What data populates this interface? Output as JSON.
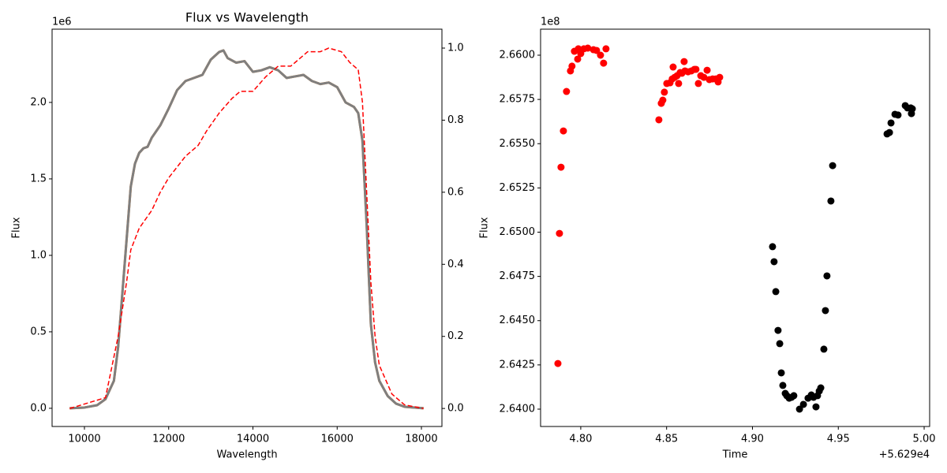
{
  "chart_data": [
    {
      "type": "line",
      "title": "Flux vs Wavelength",
      "x_label": "Wavelength",
      "y_label": "Flux",
      "y_offset_label": "1e6",
      "x": [
        9650,
        10000,
        10300,
        10500,
        10700,
        10800,
        10900,
        11000,
        11100,
        11200,
        11300,
        11400,
        11500,
        11600,
        11800,
        12000,
        12200,
        12400,
        12600,
        12800,
        13000,
        13200,
        13300,
        13400,
        13600,
        13800,
        14000,
        14200,
        14400,
        14600,
        14800,
        15000,
        15200,
        15400,
        15600,
        15800,
        16000,
        16200,
        16400,
        16500,
        16600,
        16700,
        16800,
        16900,
        17000,
        17200,
        17400,
        17600,
        18050
      ],
      "series": [
        {
          "color": "#ff7f0e",
          "values": [
            0,
            0.005,
            0.02,
            0.06,
            0.18,
            0.4,
            0.75,
            1.1,
            1.45,
            1.6,
            1.67,
            1.7,
            1.71,
            1.77,
            1.85,
            1.96,
            2.08,
            2.14,
            2.16,
            2.18,
            2.28,
            2.33,
            2.34,
            2.29,
            2.26,
            2.27,
            2.2,
            2.21,
            2.23,
            2.21,
            2.16,
            2.17,
            2.18,
            2.14,
            2.12,
            2.13,
            2.1,
            2,
            1.97,
            1.93,
            1.75,
            1.2,
            0.55,
            0.3,
            0.18,
            0.08,
            0.03,
            0.01,
            0
          ]
        },
        {
          "color": "#7f7f7f",
          "values": [
            0,
            0.005,
            0.02,
            0.06,
            0.18,
            0.4,
            0.75,
            1.1,
            1.45,
            1.6,
            1.67,
            1.7,
            1.71,
            1.77,
            1.85,
            1.96,
            2.08,
            2.14,
            2.16,
            2.18,
            2.28,
            2.33,
            2.34,
            2.29,
            2.26,
            2.27,
            2.2,
            2.21,
            2.23,
            2.21,
            2.16,
            2.17,
            2.18,
            2.14,
            2.12,
            2.13,
            2.1,
            2,
            1.97,
            1.93,
            1.75,
            1.2,
            0.55,
            0.3,
            0.18,
            0.08,
            0.03,
            0.01,
            0
          ]
        },
        {
          "color": "#ff0000",
          "linestyle": "dashed",
          "axis": "y2",
          "x": [
            9650,
            10500,
            10800,
            11000,
            11100,
            11300,
            11600,
            11800,
            12000,
            12400,
            12700,
            12900,
            13200,
            13500,
            13700,
            14000,
            14300,
            14600,
            14900,
            15100,
            15300,
            15600,
            15800,
            16100,
            16300,
            16500,
            16600,
            16700,
            16800,
            16900,
            17000,
            17300,
            17600,
            18050
          ],
          "values": [
            0,
            0.03,
            0.2,
            0.35,
            0.44,
            0.5,
            0.55,
            0.6,
            0.64,
            0.7,
            0.73,
            0.77,
            0.82,
            0.86,
            0.88,
            0.88,
            0.92,
            0.95,
            0.95,
            0.97,
            0.99,
            0.99,
            1.0,
            0.99,
            0.96,
            0.94,
            0.85,
            0.6,
            0.35,
            0.2,
            0.12,
            0.04,
            0.01,
            0
          ]
        }
      ],
      "xlim": [
        9232,
        18487
      ],
      "xticks": [
        10000,
        12000,
        14000,
        16000,
        18000
      ],
      "ylim": [
        -0.119,
        2.479
      ],
      "yticks": [
        {
          "value": 0,
          "label": "0.0"
        },
        {
          "value": 0.5,
          "label": "0.5"
        },
        {
          "value": 1,
          "label": "1.0"
        },
        {
          "value": 1.5,
          "label": "1.5"
        },
        {
          "value": 2,
          "label": "2.0"
        }
      ],
      "y2lim": [
        -0.05,
        1.0525
      ],
      "y2ticks": [
        {
          "value": 0,
          "label": "0.0"
        },
        {
          "value": 0.2,
          "label": "0.2"
        },
        {
          "value": 0.4,
          "label": "0.4"
        },
        {
          "value": 0.6,
          "label": "0.6"
        },
        {
          "value": 0.8,
          "label": "0.8"
        },
        {
          "value": 1,
          "label": "1.0"
        }
      ]
    },
    {
      "type": "scatter",
      "x_label": "Time",
      "y_label": "Flux",
      "y_offset_label": "1e8",
      "x_offset_label": "+5.629e4",
      "series": [
        {
          "color": "#ff0000",
          "x": [
            4.7867,
            4.7876,
            4.7885,
            4.7899,
            4.7917,
            4.794,
            4.7949,
            4.7963,
            4.7982,
            4.7986,
            4.8,
            4.8018,
            4.8041,
            4.8074,
            4.8092,
            4.8115,
            4.8133,
            4.8147,
            4.8455,
            4.8469,
            4.8478,
            4.8487,
            4.8501,
            4.852,
            4.8533,
            4.8538,
            4.8547,
            4.8561,
            4.857,
            4.8579,
            4.8589,
            4.8602,
            4.8607,
            4.8625,
            4.8644,
            4.8662,
            4.8671,
            4.8685,
            4.8699,
            4.8717,
            4.8736,
            4.8749,
            4.8768,
            4.8786,
            4.88,
            4.8809
          ],
          "values": [
            2.64258,
            2.64993,
            2.65367,
            2.65572,
            2.65795,
            2.65911,
            2.65938,
            2.66022,
            2.65978,
            2.66036,
            2.66009,
            2.66036,
            2.6604,
            2.66031,
            2.66027,
            2.66,
            2.65955,
            2.66036,
            2.65635,
            2.65728,
            2.65746,
            2.65791,
            2.6584,
            2.65844,
            2.65866,
            2.65933,
            2.65875,
            2.65884,
            2.6584,
            2.65902,
            2.65898,
            2.65964,
            2.65911,
            2.65906,
            2.65911,
            2.6592,
            2.6592,
            2.6584,
            2.65884,
            2.65875,
            2.65915,
            2.65862,
            2.65866,
            2.65866,
            2.65849,
            2.65875
          ]
        },
        {
          "color": "#000000",
          "x": [
            4.9117,
            4.9126,
            4.9136,
            4.9149,
            4.9159,
            4.9168,
            4.9177,
            4.9191,
            4.92,
            4.9214,
            4.9228,
            4.9241,
            4.9274,
            4.9297,
            4.9324,
            4.9343,
            4.9356,
            4.937,
            4.9379,
            4.9389,
            4.9398,
            4.9416,
            4.9425,
            4.9434,
            4.9457,
            4.9467,
            4.9784,
            4.9798,
            4.9807,
            4.983,
            4.9848,
            4.989,
            4.9903,
            4.9922,
            4.9926,
            4.9931
          ],
          "values": [
            2.64918,
            2.64833,
            2.64664,
            2.64445,
            2.6437,
            2.64205,
            2.64134,
            2.64089,
            2.64076,
            2.64062,
            2.64067,
            2.64076,
            2.64,
            2.64027,
            2.64062,
            2.6408,
            2.64067,
            2.64013,
            2.64076,
            2.64102,
            2.6412,
            2.64339,
            2.64557,
            2.64753,
            2.65176,
            2.65376,
            2.65555,
            2.65563,
            2.65617,
            2.65666,
            2.65662,
            2.65715,
            2.65702,
            2.65702,
            2.6567,
            2.65697
          ]
        }
      ],
      "xlim": [
        4.7766,
        5.0032
      ],
      "xticks": [
        {
          "value": 4.8,
          "label": "4.80"
        },
        {
          "value": 4.85,
          "label": "4.85"
        },
        {
          "value": 4.9,
          "label": "4.90"
        },
        {
          "value": 4.95,
          "label": "4.95"
        },
        {
          "value": 5.0,
          "label": "5.00"
        }
      ],
      "ylim": [
        2.63902,
        2.66147
      ],
      "yticks": [
        {
          "value": 2.64,
          "label": "2.6400"
        },
        {
          "value": 2.6425,
          "label": "2.6425"
        },
        {
          "value": 2.645,
          "label": "2.6450"
        },
        {
          "value": 2.6475,
          "label": "2.6475"
        },
        {
          "value": 2.65,
          "label": "2.6500"
        },
        {
          "value": 2.6525,
          "label": "2.6525"
        },
        {
          "value": 2.655,
          "label": "2.6550"
        },
        {
          "value": 2.6575,
          "label": "2.6575"
        },
        {
          "value": 2.66,
          "label": "2.6600"
        }
      ]
    }
  ]
}
